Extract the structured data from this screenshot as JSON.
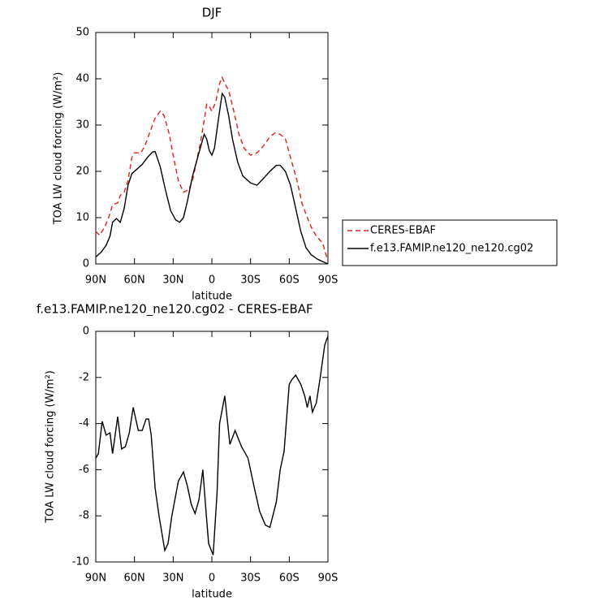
{
  "chart_data": [
    {
      "type": "line",
      "title": "DJF",
      "xlabel": "latitude",
      "ylabel": "TOA LW cloud forcing (W/m²)",
      "xlim": [
        90,
        -90
      ],
      "xticks": [
        {
          "value": 90,
          "label": "90N"
        },
        {
          "value": 60,
          "label": "60N"
        },
        {
          "value": 30,
          "label": "30N"
        },
        0,
        {
          "value": -30,
          "label": "30S"
        },
        {
          "value": -60,
          "label": "60S"
        },
        {
          "value": -90,
          "label": "90S"
        }
      ],
      "ylim": [
        0,
        50
      ],
      "yticks": [
        0,
        10,
        20,
        30,
        40,
        50
      ],
      "legend": "right",
      "series": [
        {
          "name": "CERES-EBAF",
          "color": "#e0201b",
          "dash": "dashed",
          "x": [
            90,
            87,
            83,
            80,
            77,
            73,
            71,
            68,
            65,
            62,
            60,
            55,
            52,
            48,
            44,
            40,
            37,
            33,
            30,
            26,
            22,
            18,
            15,
            12,
            9,
            6,
            4,
            2,
            0,
            -3,
            -6,
            -8,
            -10,
            -13,
            -17,
            -21,
            -25,
            -30,
            -35,
            -40,
            -45,
            -49,
            -53,
            -57,
            -60,
            -63,
            -66,
            -70,
            -74,
            -77,
            -81,
            -86,
            -88,
            -90
          ],
          "values": [
            7,
            6.2,
            8,
            10,
            12.8,
            13.2,
            14.8,
            15.5,
            18,
            23,
            24,
            24,
            25.5,
            28.5,
            31.5,
            33,
            32,
            28,
            23.5,
            18,
            15.5,
            16,
            18,
            22,
            26,
            31,
            34.5,
            34,
            33,
            35,
            39,
            40.3,
            39,
            37.5,
            33,
            28,
            25,
            23.5,
            24,
            25.5,
            27.5,
            28.3,
            28,
            27,
            24,
            21,
            18,
            13,
            10,
            8,
            6,
            4.5,
            2.5,
            0.5
          ]
        },
        {
          "name": "f.e13.FAMIP.ne120_ne120.cg02",
          "color": "#000000",
          "dash": "solid",
          "x": [
            90,
            86,
            82,
            79,
            77,
            74,
            71,
            68,
            65,
            62,
            58,
            54,
            50,
            46,
            44,
            40,
            36,
            32,
            28,
            25,
            22,
            19,
            15,
            11,
            8,
            6,
            4,
            2,
            0,
            -2,
            -5,
            -8,
            -10,
            -13,
            -16,
            -20,
            -24,
            -30,
            -35,
            -40,
            -45,
            -50,
            -53,
            -57,
            -61,
            -65,
            -69,
            -73,
            -77,
            -82,
            -86,
            -90
          ],
          "values": [
            1.5,
            2.5,
            4,
            6,
            9,
            9.8,
            9,
            12,
            17,
            19.5,
            20.5,
            21.5,
            23,
            24.2,
            24.3,
            21,
            16,
            11.5,
            9.5,
            9,
            10,
            13.5,
            19,
            23,
            26,
            28,
            27,
            24.5,
            23.5,
            25,
            31,
            36.8,
            36,
            32,
            27,
            22,
            19,
            17.5,
            17,
            18.5,
            20,
            21.3,
            21.3,
            20,
            17,
            12,
            7,
            3.5,
            2,
            1,
            0.5,
            0
          ]
        }
      ]
    },
    {
      "type": "line",
      "title": "f.e13.FAMIP.ne120_ne120.cg02 - CERES-EBAF",
      "xlabel": "latitude",
      "ylabel": "TOA LW cloud forcing (W/m²)",
      "xlim": [
        90,
        -90
      ],
      "xticks": [
        {
          "value": 90,
          "label": "90N"
        },
        {
          "value": 60,
          "label": "60N"
        },
        {
          "value": 30,
          "label": "30N"
        },
        0,
        {
          "value": -30,
          "label": "30S"
        },
        {
          "value": -60,
          "label": "60S"
        },
        {
          "value": -90,
          "label": "90S"
        }
      ],
      "ylim": [
        -10,
        0
      ],
      "yticks": [
        -10,
        -8,
        -6,
        -4,
        -2,
        0
      ],
      "series": [
        {
          "color": "#000000",
          "dash": "solid",
          "x": [
            90,
            88,
            85,
            82,
            79,
            77,
            73,
            70,
            67,
            64,
            61,
            57,
            54,
            51,
            49,
            47,
            44,
            41,
            36.5,
            34,
            31,
            26,
            22,
            19,
            16,
            13,
            10,
            7,
            5,
            2.5,
            -1,
            -4,
            -6,
            -10,
            -14,
            -18,
            -23,
            -28,
            -33,
            -37,
            -41.5,
            -45,
            -50,
            -53,
            -56,
            -60,
            -62,
            -65,
            -69,
            -72,
            -74,
            -76,
            -78,
            -81,
            -84,
            -87.5,
            -90
          ],
          "values": [
            -5.5,
            -5.3,
            -3.9,
            -4.5,
            -4.4,
            -5.3,
            -3.7,
            -5.1,
            -5.0,
            -4.4,
            -3.3,
            -4.3,
            -4.3,
            -3.8,
            -3.8,
            -4.5,
            -6.8,
            -8.0,
            -9.5,
            -9.2,
            -8.0,
            -6.5,
            -6.1,
            -6.7,
            -7.5,
            -7.9,
            -7.3,
            -6.0,
            -7.5,
            -9.2,
            -9.7,
            -7.0,
            -4.0,
            -2.8,
            -4.9,
            -4.3,
            -5.0,
            -5.5,
            -6.8,
            -7.8,
            -8.4,
            -8.5,
            -7.4,
            -6.0,
            -5.2,
            -2.3,
            -2.1,
            -1.9,
            -2.3,
            -2.8,
            -3.3,
            -2.8,
            -3.5,
            -3.1,
            -2.0,
            -0.6,
            -0.2
          ]
        }
      ]
    }
  ]
}
